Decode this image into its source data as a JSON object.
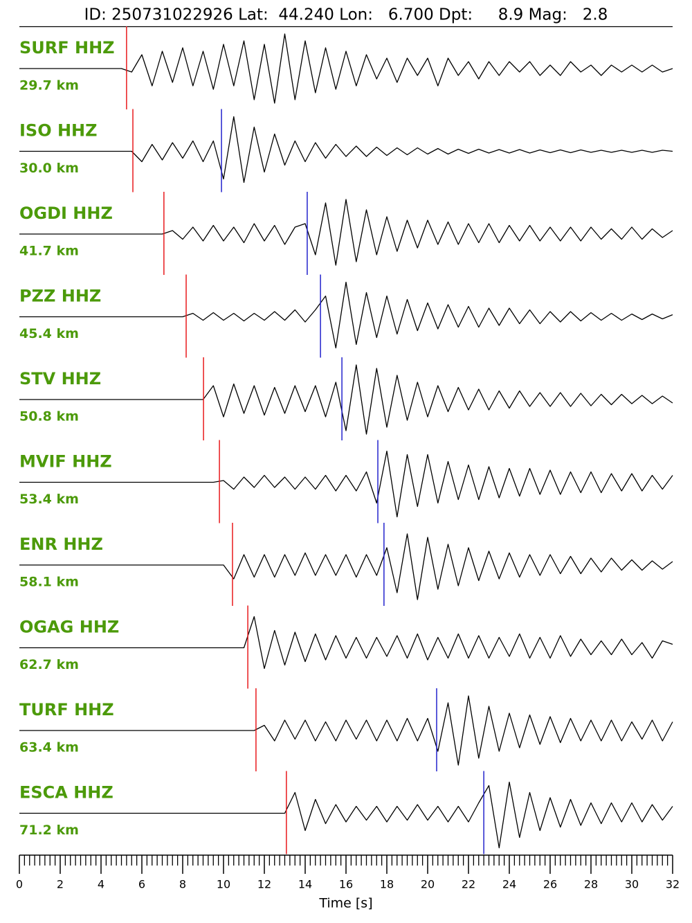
{
  "chart_data": {
    "type": "seismogram",
    "title": "ID: 250731022926 Lat:  44.240 Lon:   6.700 Dpt:     8.9 Mag:   2.8",
    "xlabel": "Time [s]",
    "xlim": [
      0,
      32
    ],
    "xticks": [
      0,
      2,
      4,
      6,
      8,
      10,
      12,
      14,
      16,
      18,
      20,
      22,
      24,
      26,
      28,
      30,
      32
    ],
    "xminorticks": [
      0.25,
      0.5,
      0.75,
      1,
      1.25,
      1.5,
      1.75,
      2.25,
      2.5,
      2.75,
      3,
      3.25,
      3.5,
      3.75,
      4.25,
      4.5,
      4.75,
      5,
      5.25,
      5.5,
      5.75,
      6.25,
      6.5,
      6.75,
      7,
      7.25,
      7.5,
      7.75,
      8.25,
      8.5,
      8.75,
      9,
      9.25,
      9.5,
      9.75,
      10.25,
      10.5,
      10.75,
      11,
      11.25,
      11.5,
      11.75,
      12.25,
      12.5,
      12.75,
      13,
      13.25,
      13.5,
      13.75,
      14.25,
      14.5,
      14.75,
      15,
      15.25,
      15.5,
      15.75,
      16.25,
      16.5,
      16.75,
      17,
      17.25,
      17.5,
      17.75,
      18.25,
      18.5,
      18.75,
      19,
      19.25,
      19.5,
      19.75,
      20.25,
      20.5,
      20.75,
      21,
      21.25,
      21.5,
      21.75,
      22.25,
      22.5,
      22.75,
      23,
      23.25,
      23.5,
      23.75,
      24.25,
      24.5,
      24.75,
      25,
      25.25,
      25.5,
      25.75,
      26.25,
      26.5,
      26.75,
      27,
      27.25,
      27.5,
      27.75,
      28.25,
      28.5,
      28.75,
      29,
      29.25,
      29.5,
      29.75,
      30.25,
      30.5,
      30.75,
      31,
      31.25,
      31.5,
      31.75
    ],
    "x": [
      0,
      0.5,
      1,
      1.5,
      2,
      2.5,
      3,
      3.5,
      4,
      4.5,
      5,
      5.5,
      6,
      6.5,
      7,
      7.5,
      8,
      8.5,
      9,
      9.5,
      10,
      10.5,
      11,
      11.5,
      12,
      12.5,
      13,
      13.5,
      14,
      14.5,
      15,
      15.5,
      16,
      16.5,
      17,
      17.5,
      18,
      18.5,
      19,
      19.5,
      20,
      20.5,
      21,
      21.5,
      22,
      22.5,
      23,
      23.5,
      24,
      24.5,
      25,
      25.5,
      26,
      26.5,
      27,
      27.5,
      28,
      28.5,
      29,
      29.5,
      30,
      30.5,
      31,
      31.5,
      32
    ],
    "label_color": "#4c9a0a",
    "p_color": "#e8191c",
    "s_color": "#2222cc",
    "trace_color": "#000000",
    "series": [
      {
        "name": "SURF HHZ",
        "distance": "29.7 km",
        "p_pick": 5.25,
        "s_pick": null,
        "values": [
          0,
          0,
          0,
          0,
          0,
          0,
          0,
          0,
          0,
          0,
          0,
          -0.1,
          0.4,
          -0.5,
          0.5,
          -0.4,
          0.6,
          -0.5,
          0.5,
          -0.6,
          0.7,
          -0.5,
          0.8,
          -0.9,
          0.7,
          -1.0,
          1.0,
          -0.9,
          0.8,
          -0.7,
          0.6,
          -0.6,
          0.5,
          -0.5,
          0.4,
          -0.3,
          0.3,
          -0.4,
          0.3,
          -0.2,
          0.3,
          -0.5,
          0.3,
          -0.2,
          0.2,
          -0.3,
          0.2,
          -0.2,
          0.2,
          -0.1,
          0.2,
          -0.2,
          0.1,
          -0.2,
          0.2,
          -0.1,
          0.1,
          -0.2,
          0.1,
          -0.1,
          0.1,
          -0.1,
          0.1,
          -0.1,
          0.0
        ]
      },
      {
        "name": "ISO HHZ",
        "distance": "30.0 km",
        "p_pick": 5.56,
        "s_pick": 9.9,
        "values": [
          0,
          0,
          0,
          0,
          0,
          0,
          0,
          0,
          0,
          0,
          0,
          0,
          -0.3,
          0.2,
          -0.25,
          0.25,
          -0.2,
          0.3,
          -0.3,
          0.3,
          -0.8,
          1.0,
          -0.9,
          0.7,
          -0.6,
          0.5,
          -0.4,
          0.3,
          -0.3,
          0.25,
          -0.2,
          0.2,
          -0.15,
          0.15,
          -0.15,
          0.12,
          -0.12,
          0.1,
          -0.1,
          0.1,
          -0.08,
          0.08,
          -0.08,
          0.06,
          -0.06,
          0.06,
          -0.05,
          0.05,
          -0.05,
          0.05,
          -0.05,
          0.04,
          -0.04,
          0.04,
          -0.04,
          0.04,
          -0.03,
          0.03,
          -0.03,
          0.03,
          -0.03,
          0.03,
          -0.03,
          0.03,
          0
        ]
      },
      {
        "name": "OGDI HHZ",
        "distance": "41.7 km",
        "p_pick": 7.08,
        "s_pick": 14.1,
        "values": [
          0,
          0,
          0,
          0,
          0,
          0,
          0,
          0,
          0,
          0,
          0,
          0,
          0,
          0,
          0,
          0.1,
          -0.15,
          0.2,
          -0.2,
          0.25,
          -0.2,
          0.2,
          -0.25,
          0.3,
          -0.2,
          0.25,
          -0.3,
          0.2,
          0.3,
          -0.6,
          0.9,
          -0.9,
          1.0,
          -0.8,
          0.7,
          -0.6,
          0.5,
          -0.5,
          0.4,
          -0.4,
          0.4,
          -0.3,
          0.35,
          -0.3,
          0.3,
          -0.25,
          0.3,
          -0.25,
          0.25,
          -0.2,
          0.25,
          -0.2,
          0.2,
          -0.2,
          0.2,
          -0.2,
          0.2,
          -0.15,
          0.15,
          -0.15,
          0.2,
          -0.15,
          0.15,
          -0.1,
          0.1
        ]
      },
      {
        "name": "PZZ HHZ",
        "distance": "45.4 km",
        "p_pick": 8.17,
        "s_pick": 14.75,
        "values": [
          0,
          0,
          0,
          0,
          0,
          0,
          0,
          0,
          0,
          0,
          0,
          0,
          0,
          0,
          0,
          0,
          0,
          0.1,
          -0.1,
          0.12,
          -0.1,
          0.1,
          -0.12,
          0.1,
          -0.1,
          0.15,
          -0.1,
          0.2,
          -0.15,
          0.2,
          0.6,
          -0.9,
          1.0,
          -0.8,
          0.7,
          -0.6,
          0.6,
          -0.5,
          0.5,
          -0.4,
          0.4,
          -0.35,
          0.35,
          -0.3,
          0.3,
          -0.3,
          0.25,
          -0.25,
          0.25,
          -0.2,
          0.2,
          -0.2,
          0.15,
          -0.15,
          0.15,
          -0.12,
          0.12,
          -0.1,
          0.1,
          -0.1,
          0.08,
          -0.08,
          0.08,
          -0.06,
          0.06
        ]
      },
      {
        "name": "STV HHZ",
        "distance": "50.8 km",
        "p_pick": 9.02,
        "s_pick": 15.8,
        "values": [
          0,
          0,
          0,
          0,
          0,
          0,
          0,
          0,
          0,
          0,
          0,
          0,
          0,
          0,
          0,
          0,
          0,
          0,
          0,
          0.4,
          -0.5,
          0.45,
          -0.4,
          0.4,
          -0.45,
          0.35,
          -0.4,
          0.4,
          -0.35,
          0.4,
          -0.5,
          0.5,
          -0.9,
          1.0,
          -1.0,
          0.9,
          -0.8,
          0.7,
          -0.6,
          0.5,
          -0.5,
          0.4,
          -0.35,
          0.35,
          -0.3,
          0.3,
          -0.3,
          0.25,
          -0.25,
          0.25,
          -0.2,
          0.2,
          -0.2,
          0.2,
          -0.2,
          0.18,
          -0.18,
          0.15,
          -0.15,
          0.15,
          -0.12,
          0.12,
          -0.12,
          0.1,
          -0.1
        ]
      },
      {
        "name": "MVIF HHZ",
        "distance": "53.4 km",
        "p_pick": 9.8,
        "s_pick": 17.56,
        "values": [
          0,
          0,
          0,
          0,
          0,
          0,
          0,
          0,
          0,
          0,
          0,
          0,
          0,
          0,
          0,
          0,
          0,
          0,
          0,
          0,
          0.05,
          -0.2,
          0.15,
          -0.15,
          0.2,
          -0.15,
          0.15,
          -0.2,
          0.15,
          -0.2,
          0.2,
          -0.25,
          0.2,
          -0.25,
          0.3,
          -0.6,
          0.9,
          -1.0,
          0.8,
          -0.7,
          0.8,
          -0.6,
          0.6,
          -0.5,
          0.5,
          -0.5,
          0.45,
          -0.45,
          0.4,
          -0.4,
          0.4,
          -0.35,
          0.35,
          -0.35,
          0.3,
          -0.3,
          0.3,
          -0.3,
          0.25,
          -0.25,
          0.25,
          -0.25,
          0.2,
          -0.2,
          0.2
        ]
      },
      {
        "name": "ENR HHZ",
        "distance": "58.1 km",
        "p_pick": 10.44,
        "s_pick": 17.86,
        "values": [
          0,
          0,
          0,
          0,
          0,
          0,
          0,
          0,
          0,
          0,
          0,
          0,
          0,
          0,
          0,
          0,
          0,
          0,
          0,
          0,
          0,
          -0.4,
          0.3,
          -0.35,
          0.3,
          -0.35,
          0.3,
          -0.3,
          0.35,
          -0.3,
          0.3,
          -0.3,
          0.3,
          -0.35,
          0.3,
          -0.3,
          0.5,
          -0.8,
          0.9,
          -1.0,
          0.8,
          -0.7,
          0.6,
          -0.6,
          0.5,
          -0.45,
          0.4,
          -0.4,
          0.35,
          -0.35,
          0.3,
          -0.3,
          0.3,
          -0.25,
          0.25,
          -0.25,
          0.2,
          -0.2,
          0.2,
          -0.15,
          0.15,
          -0.15,
          0.12,
          -0.12,
          0.1
        ]
      },
      {
        "name": "OGAG HHZ",
        "distance": "62.7 km",
        "p_pick": 11.19,
        "s_pick": null,
        "values": [
          0,
          0,
          0,
          0,
          0,
          0,
          0,
          0,
          0,
          0,
          0,
          0,
          0,
          0,
          0,
          0,
          0,
          0,
          0,
          0,
          0,
          0,
          0,
          0.9,
          -0.6,
          0.5,
          -0.5,
          0.45,
          -0.4,
          0.4,
          -0.35,
          0.35,
          -0.3,
          0.3,
          -0.3,
          0.3,
          -0.25,
          0.35,
          -0.3,
          0.4,
          -0.35,
          0.3,
          -0.3,
          0.4,
          -0.3,
          0.35,
          -0.3,
          0.3,
          -0.25,
          0.4,
          -0.3,
          0.3,
          -0.3,
          0.35,
          -0.25,
          0.25,
          -0.2,
          0.2,
          -0.2,
          0.25,
          -0.2,
          0.15,
          -0.3,
          0.2,
          0.1
        ]
      },
      {
        "name": "TURF HHZ",
        "distance": "63.4 km",
        "p_pick": 11.59,
        "s_pick": 20.44,
        "values": [
          0,
          0,
          0,
          0,
          0,
          0,
          0,
          0,
          0,
          0,
          0,
          0,
          0,
          0,
          0,
          0,
          0,
          0,
          0,
          0,
          0,
          0,
          0,
          0,
          0.15,
          -0.3,
          0.3,
          -0.25,
          0.3,
          -0.3,
          0.25,
          -0.3,
          0.3,
          -0.25,
          0.3,
          -0.3,
          0.3,
          -0.3,
          0.35,
          -0.3,
          0.35,
          -0.6,
          0.8,
          -1.0,
          1.0,
          -0.8,
          0.7,
          -0.6,
          0.5,
          -0.5,
          0.45,
          -0.4,
          0.4,
          -0.35,
          0.35,
          -0.3,
          0.3,
          -0.3,
          0.3,
          -0.3,
          0.25,
          -0.25,
          0.3,
          -0.3,
          0.25
        ]
      },
      {
        "name": "ESCA HHZ",
        "distance": "71.2 km",
        "p_pick": 13.08,
        "s_pick": 22.75,
        "values": [
          0,
          0,
          0,
          0,
          0,
          0,
          0,
          0,
          0,
          0,
          0,
          0,
          0,
          0,
          0,
          0,
          0,
          0,
          0,
          0,
          0,
          0,
          0,
          0,
          0,
          0,
          0,
          0.6,
          -0.5,
          0.4,
          -0.3,
          0.25,
          -0.25,
          0.2,
          -0.2,
          0.2,
          -0.25,
          0.2,
          -0.2,
          0.25,
          -0.2,
          0.2,
          -0.25,
          0.2,
          -0.25,
          0.3,
          0.8,
          -1.0,
          0.9,
          -0.7,
          0.6,
          -0.5,
          0.45,
          -0.4,
          0.4,
          -0.35,
          0.3,
          -0.3,
          0.3,
          -0.25,
          0.3,
          -0.25,
          0.25,
          -0.2,
          0.2
        ]
      }
    ]
  }
}
